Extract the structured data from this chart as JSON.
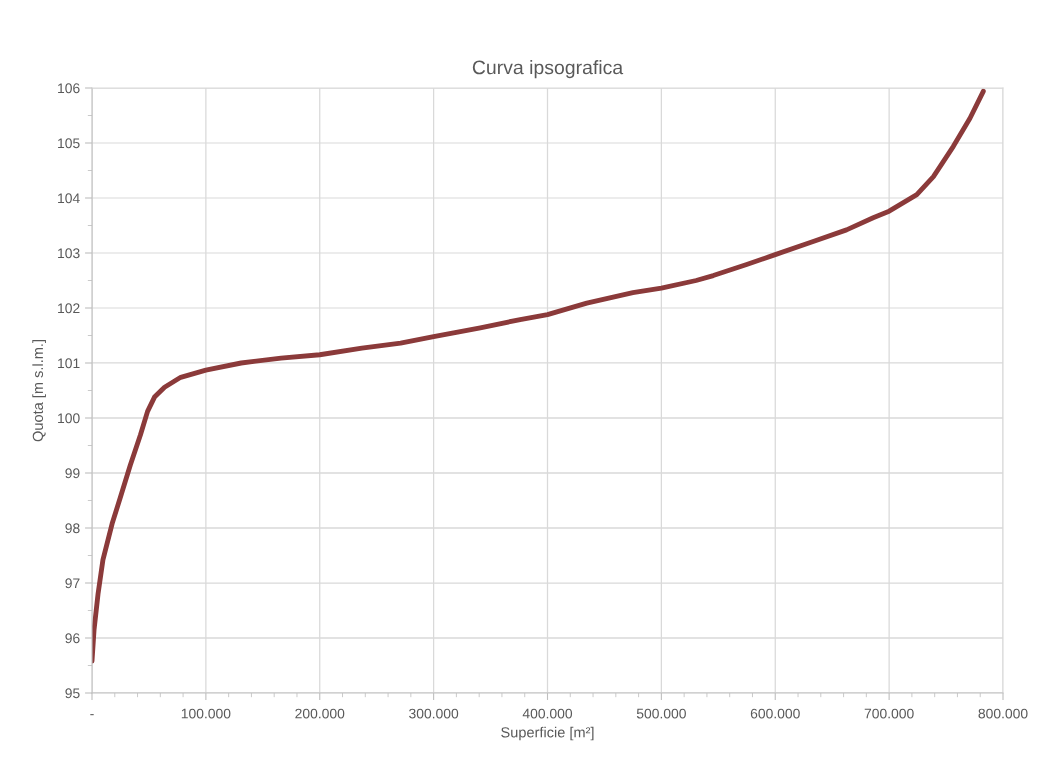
{
  "chart_data": {
    "type": "line",
    "title": "Curva ipsografica",
    "xlabel": "Superficie [m²]",
    "ylabel": "Quota [m s.l.m.]",
    "series": [
      {
        "color": "#8b3a3a",
        "x": [
          0,
          1800,
          5300,
          9600,
          17700,
          24800,
          33600,
          42500,
          48800,
          54900,
          63700,
          77900,
          100000,
          131000,
          166000,
          200000,
          237000,
          271000,
          300000,
          341000,
          376000,
          400000,
          434500,
          475000,
          500000,
          530500,
          545600,
          574900,
          600000,
          633300,
          662600,
          686000,
          700000,
          724300,
          738900,
          756400,
          771000,
          782700
        ],
        "values": [
          95.58,
          96.15,
          96.8,
          97.42,
          98.08,
          98.55,
          99.14,
          99.69,
          100.12,
          100.38,
          100.56,
          100.74,
          100.87,
          101.0,
          101.09,
          101.15,
          101.27,
          101.36,
          101.48,
          101.64,
          101.79,
          101.88,
          102.09,
          102.28,
          102.36,
          102.5,
          102.59,
          102.79,
          102.97,
          103.21,
          103.42,
          103.64,
          103.76,
          104.06,
          104.39,
          104.94,
          105.45,
          105.94
        ]
      }
    ],
    "xlim": [
      0,
      800000
    ],
    "ylim": [
      95,
      106
    ],
    "xticks": [
      {
        "value": 0,
        "label": "-"
      },
      {
        "value": 100000,
        "label": "100.000"
      },
      {
        "value": 200000,
        "label": "200.000"
      },
      {
        "value": 300000,
        "label": "300.000"
      },
      {
        "value": 400000,
        "label": "400.000"
      },
      {
        "value": 500000,
        "label": "500.000"
      },
      {
        "value": 600000,
        "label": "600.000"
      },
      {
        "value": 700000,
        "label": "700.000"
      },
      {
        "value": 800000,
        "label": "800.000"
      }
    ],
    "yticks": [
      95,
      96,
      97,
      98,
      99,
      100,
      101,
      102,
      103,
      104,
      105,
      106
    ],
    "grid": true,
    "legend": false,
    "marker": "none",
    "line_style": "solid"
  }
}
